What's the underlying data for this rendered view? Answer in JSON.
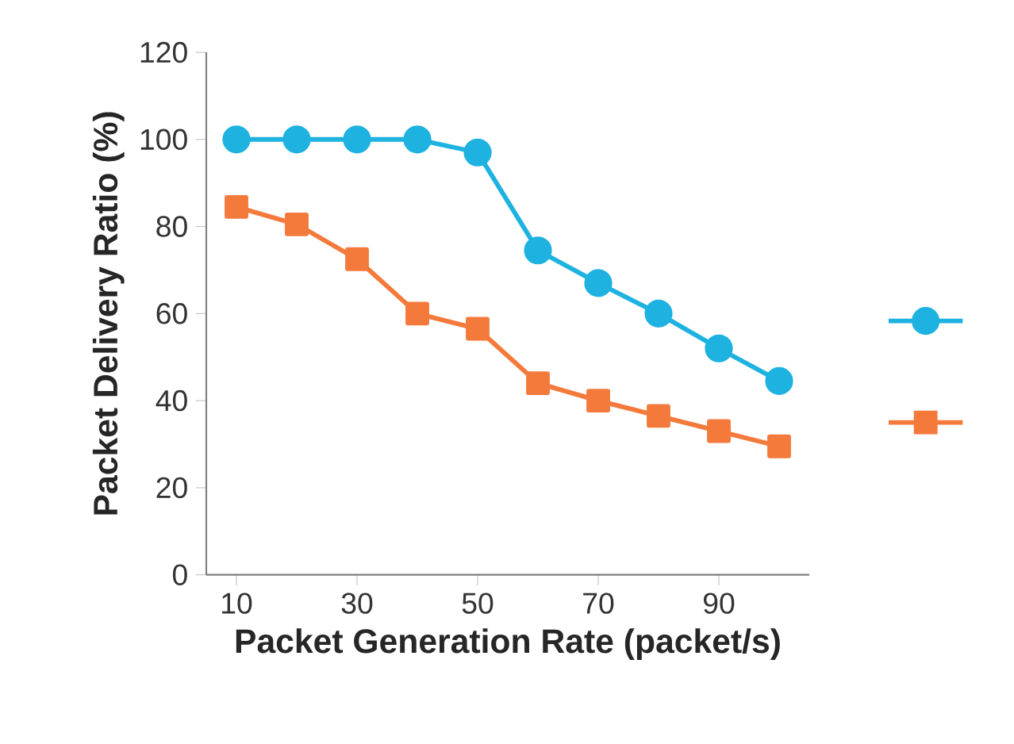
{
  "chart_data": {
    "type": "line",
    "xlabel": "Packet Generation Rate (packet/s)",
    "ylabel": "Packet Delivery Ratio (%)",
    "x": [
      10,
      20,
      30,
      40,
      50,
      60,
      70,
      80,
      90,
      100
    ],
    "series": [
      {
        "color": "#1eb2e0",
        "values": [
          100,
          100,
          100,
          100,
          97,
          74.5,
          67,
          60,
          52,
          44.5
        ],
        "marker": "circle"
      },
      {
        "color": "#f47a3c",
        "values": [
          84.5,
          80.5,
          72.5,
          60,
          56.5,
          44,
          40,
          36.5,
          33,
          29.5
        ],
        "marker": "square"
      }
    ],
    "xlim": [
      5,
      105
    ],
    "xticks": [
      10,
      30,
      50,
      70,
      90
    ],
    "ylim": [
      0,
      120
    ],
    "yticks": [
      0,
      20,
      40,
      60,
      80,
      100,
      120
    ],
    "grid": false,
    "line_style": "solid"
  }
}
